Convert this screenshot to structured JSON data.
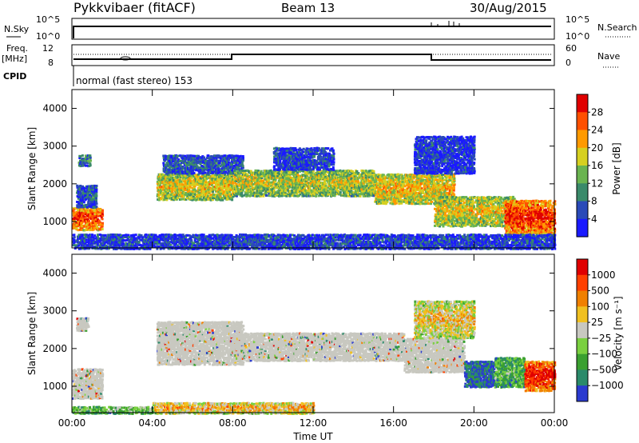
{
  "header": {
    "title": "Pykkvibaer (fitACF)",
    "beam": "Beam 13",
    "date": "30/Aug/2015"
  },
  "params_panel": {
    "nsky_label": "N.Sky",
    "nsky_ticks": [
      "10^5",
      "10^0"
    ],
    "nsearch_label": "N.Search",
    "nsearch_ticks": [
      "10^5",
      "10^0"
    ],
    "freq_label": "Freq.",
    "freq_unit": "[MHz]",
    "freq_ticks": [
      "12",
      "8"
    ],
    "nave_label": "Nave",
    "nave_ticks": [
      "60",
      "0"
    ],
    "cpid_label": "CPID",
    "cpid_text": "normal (fast stereo) 153"
  },
  "colors": {
    "power_scale": [
      "#1a1aff",
      "#2a4ab8",
      "#3a8a6a",
      "#6ab450",
      "#d6d020",
      "#ff9a00",
      "#ff5000",
      "#e00000"
    ],
    "velocity_scale": [
      "#2a3ad0",
      "#2a8a6a",
      "#3aa030",
      "#7ad040",
      "#c8c8c0",
      "#f0c020",
      "#f08000",
      "#ff4000",
      "#e00000"
    ]
  },
  "chart_data": [
    {
      "type": "heatmap",
      "panel": "power",
      "xlabel": "",
      "ylabel": "Slant Range [km]",
      "yticks": [
        "1000",
        "2000",
        "3000",
        "4000"
      ],
      "ylim": [
        300,
        4500
      ],
      "xticks": [
        "00:00",
        "04:00",
        "08:00",
        "12:00",
        "16:00",
        "20:00",
        "00:00"
      ],
      "xlim_hours": [
        0,
        24
      ],
      "colorbar_label": "Power [dB]",
      "colorbar_ticks": [
        "4",
        "8",
        "12",
        "16",
        "20",
        "24",
        "28"
      ],
      "bands": [
        {
          "t0": 0.0,
          "t1": 1.5,
          "r0": 800,
          "r1": 1400,
          "level": 0.8
        },
        {
          "t0": 0.2,
          "t1": 1.2,
          "r0": 1400,
          "r1": 2000,
          "level": 0.2
        },
        {
          "t0": 0.3,
          "t1": 0.9,
          "r0": 2500,
          "r1": 2800,
          "level": 0.25
        },
        {
          "t0": 4.2,
          "t1": 8.0,
          "r0": 1600,
          "r1": 2300,
          "level": 0.55
        },
        {
          "t0": 4.5,
          "t1": 8.5,
          "r0": 2300,
          "r1": 2800,
          "level": 0.2
        },
        {
          "t0": 8.0,
          "t1": 15.0,
          "r0": 1700,
          "r1": 2400,
          "level": 0.5
        },
        {
          "t0": 10.0,
          "t1": 13.0,
          "r0": 2400,
          "r1": 3000,
          "level": 0.15
        },
        {
          "t0": 15.0,
          "t1": 19.0,
          "r0": 1500,
          "r1": 2300,
          "level": 0.6
        },
        {
          "t0": 17.0,
          "t1": 20.0,
          "r0": 2300,
          "r1": 3300,
          "level": 0.12
        },
        {
          "t0": 18.0,
          "t1": 22.0,
          "r0": 900,
          "r1": 1700,
          "level": 0.55
        },
        {
          "t0": 21.5,
          "t1": 24.0,
          "r0": 700,
          "r1": 1600,
          "level": 0.85
        },
        {
          "t0": 0.0,
          "t1": 24.0,
          "r0": 300,
          "r1": 700,
          "level": 0.15
        }
      ]
    },
    {
      "type": "heatmap",
      "panel": "velocity",
      "xlabel": "Time UT",
      "ylabel": "Slant Range [km]",
      "yticks": [
        "1000",
        "2000",
        "3000",
        "4000"
      ],
      "ylim": [
        300,
        4500
      ],
      "xticks": [
        "00:00",
        "04:00",
        "08:00",
        "12:00",
        "16:00",
        "20:00",
        "00:00"
      ],
      "xlim_hours": [
        0,
        24
      ],
      "colorbar_label": "Velocity [m s⁻¹]",
      "colorbar_ticks": [
        "1000",
        "500",
        "100",
        "25",
        "−25",
        "−100",
        "−500",
        "−1000"
      ],
      "bands": [
        {
          "t0": 0.0,
          "t1": 1.5,
          "r0": 700,
          "r1": 1500,
          "level": 0.5
        },
        {
          "t0": 0.2,
          "t1": 0.8,
          "r0": 2500,
          "r1": 2850,
          "level": 0.5
        },
        {
          "t0": 4.2,
          "t1": 8.5,
          "r0": 1600,
          "r1": 2750,
          "level": 0.5
        },
        {
          "t0": 8.0,
          "t1": 16.5,
          "r0": 1700,
          "r1": 2450,
          "level": 0.5
        },
        {
          "t0": 16.5,
          "t1": 19.5,
          "r0": 1400,
          "r1": 2300,
          "level": 0.5
        },
        {
          "t0": 17.0,
          "t1": 20.0,
          "r0": 2300,
          "r1": 3300,
          "level": 0.55
        },
        {
          "t0": 19.5,
          "t1": 21.0,
          "r0": 1000,
          "r1": 1700,
          "level": 0.1
        },
        {
          "t0": 21.0,
          "t1": 22.5,
          "r0": 1000,
          "r1": 1800,
          "level": 0.3
        },
        {
          "t0": 22.5,
          "t1": 24.0,
          "r0": 900,
          "r1": 1700,
          "level": 0.9
        },
        {
          "t0": 4.0,
          "t1": 12.0,
          "r0": 300,
          "r1": 600,
          "level": 0.6
        },
        {
          "t0": 0.0,
          "t1": 4.0,
          "r0": 300,
          "r1": 500,
          "level": 0.35
        }
      ]
    }
  ]
}
